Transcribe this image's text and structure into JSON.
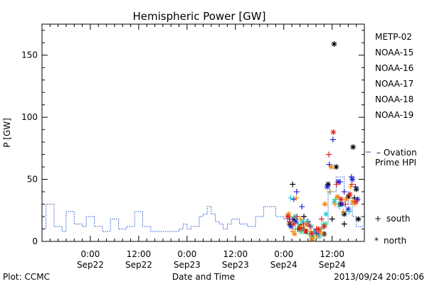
{
  "chart_data": {
    "type": "scatter",
    "title": "Hemispheric Power [GW]",
    "xlabel": "Date and Time",
    "ylabel": "P [GW]",
    "ylim": [
      0,
      175
    ],
    "xlim_hours": [
      -24,
      56
    ],
    "grid": false,
    "legend_position": "right",
    "yticks": [
      0,
      50,
      100,
      150
    ],
    "xticks": [
      {
        "t": -12,
        "time": "0:00",
        "date": "Sep22"
      },
      {
        "t": 0,
        "time": "12:00",
        "date": "Sep22"
      },
      {
        "t": 12,
        "time": "0:00",
        "date": "Sep23"
      },
      {
        "t": 24,
        "time": "12:00",
        "date": "Sep23"
      },
      {
        "t": 36,
        "time": "0:00",
        "date": "Sep24"
      },
      {
        "t": 48,
        "time": "12:00",
        "date": "Sep24"
      }
    ],
    "footer_left": "Plot: CCMC",
    "footer_right": "2013/09/24 20:05:06",
    "legend": [
      {
        "name": "METP-02",
        "color": "#000000"
      },
      {
        "name": "NOAA-15",
        "color": "#2222cc"
      },
      {
        "name": "NOAA-16",
        "color": "#22ccdd"
      },
      {
        "name": "NOAA-17",
        "color": "#33dd77"
      },
      {
        "name": "NOAA-18",
        "color": "#ee8811"
      },
      {
        "name": "NOAA-19",
        "color": "#dd2222"
      }
    ],
    "ovation": {
      "label_line1": "– Ovation",
      "label_line2": "Prime HPI",
      "color": "#2255cc"
    },
    "markers": {
      "south_label": "south",
      "north_label": "north",
      "south_symbol": "+",
      "north_symbol": "*"
    },
    "ovation_series": {
      "t": [
        -24,
        -23,
        -22,
        -21,
        -20,
        -19,
        -18,
        -17,
        -16,
        -15,
        -14,
        -13,
        -12,
        -11,
        -10,
        -9,
        -8,
        -7,
        -6,
        -5,
        -4,
        -3,
        -2,
        -1,
        0,
        1,
        2,
        3,
        4,
        5,
        6,
        7,
        8,
        9,
        10,
        11,
        12,
        13,
        14,
        15,
        16,
        17,
        18,
        19,
        20,
        21,
        22,
        23,
        24,
        25,
        26,
        27,
        28,
        29,
        30,
        31,
        32,
        33,
        34,
        35,
        36,
        37,
        38,
        39,
        40,
        41,
        42,
        43,
        44,
        45,
        46,
        47,
        48,
        49,
        50,
        51,
        52,
        53,
        54,
        55,
        56
      ],
      "p": [
        10,
        30,
        30,
        12,
        12,
        8,
        24,
        24,
        14,
        14,
        12,
        20,
        20,
        12,
        12,
        8,
        8,
        18,
        18,
        10,
        10,
        12,
        12,
        24,
        24,
        12,
        12,
        8,
        8,
        8,
        8,
        8,
        8,
        8,
        10,
        14,
        10,
        12,
        12,
        20,
        22,
        28,
        22,
        16,
        14,
        10,
        14,
        18,
        18,
        14,
        14,
        12,
        12,
        20,
        20,
        28,
        28,
        28,
        20,
        20,
        18,
        16,
        16,
        14,
        12,
        10,
        8,
        6,
        4,
        10,
        14,
        40,
        40,
        52,
        52,
        40,
        30,
        20,
        12,
        12,
        10
      ]
    },
    "satellites": [
      {
        "name": "METP-02",
        "color": "#000000",
        "south": [
          [
            38.2,
            46
          ],
          [
            39.5,
            10
          ],
          [
            41,
            20
          ],
          [
            44,
            8
          ],
          [
            48,
            18
          ],
          [
            51,
            14
          ],
          [
            53.5,
            35
          ]
        ],
        "north": [
          [
            37.5,
            14
          ],
          [
            38.5,
            18
          ],
          [
            40,
            12
          ],
          [
            41.5,
            8
          ],
          [
            43,
            2
          ],
          [
            46,
            6
          ],
          [
            47,
            46
          ],
          [
            48.5,
            159
          ],
          [
            49,
            60
          ],
          [
            50,
            30
          ],
          [
            51,
            22
          ],
          [
            52,
            36
          ],
          [
            53.2,
            76
          ],
          [
            54,
            42
          ],
          [
            54.5,
            18
          ]
        ]
      },
      {
        "name": "NOAA-15",
        "color": "#2222cc",
        "south": [
          [
            37.5,
            18
          ],
          [
            38.5,
            34
          ],
          [
            39.2,
            40
          ],
          [
            40.5,
            28
          ],
          [
            42,
            16
          ],
          [
            43.5,
            8
          ],
          [
            46,
            12
          ],
          [
            47.3,
            62
          ],
          [
            48.2,
            82
          ],
          [
            50,
            48
          ],
          [
            51,
            40
          ],
          [
            52.8,
            52
          ],
          [
            53.8,
            44
          ]
        ],
        "north": [
          [
            37.8,
            12
          ],
          [
            39,
            16
          ],
          [
            40.8,
            10
          ],
          [
            42,
            14
          ],
          [
            44.5,
            6
          ],
          [
            46.8,
            44
          ],
          [
            49.5,
            48
          ],
          [
            50.5,
            30
          ],
          [
            52,
            26
          ],
          [
            53,
            50
          ],
          [
            54.3,
            34
          ]
        ]
      },
      {
        "name": "NOAA-16",
        "color": "#22ccdd",
        "south": [
          [
            37.7,
            35
          ],
          [
            39.6,
            14
          ],
          [
            41.6,
            16
          ],
          [
            43.8,
            8
          ],
          [
            45.8,
            14
          ],
          [
            47.5,
            40
          ],
          [
            49.8,
            28
          ],
          [
            52.2,
            24
          ]
        ],
        "north": [
          [
            38.8,
            20
          ],
          [
            40.6,
            16
          ],
          [
            42.8,
            12
          ],
          [
            44.8,
            4
          ],
          [
            46.5,
            22
          ],
          [
            48.6,
            32
          ]
        ]
      },
      {
        "name": "NOAA-17",
        "color": "#33dd77",
        "south": [
          [
            38.9,
            10
          ],
          [
            42.3,
            6
          ],
          [
            45.3,
            10
          ],
          [
            48.8,
            34
          ]
        ],
        "north": [
          [
            40.3,
            8
          ],
          [
            43.3,
            4
          ],
          [
            46.3,
            14
          ]
        ]
      },
      {
        "name": "NOAA-18",
        "color": "#ee8811",
        "south": [
          [
            37.3,
            20
          ],
          [
            38.2,
            8
          ],
          [
            39.1,
            35
          ],
          [
            40.1,
            18
          ],
          [
            41.2,
            10
          ],
          [
            42.7,
            8
          ],
          [
            44.2,
            4
          ],
          [
            45.6,
            6
          ],
          [
            47.4,
            40
          ],
          [
            48.7,
            30
          ],
          [
            50.8,
            24
          ],
          [
            52.6,
            44
          ],
          [
            53.6,
            30
          ]
        ],
        "north": [
          [
            37.2,
            22
          ],
          [
            38.7,
            6
          ],
          [
            40.2,
            12
          ],
          [
            41.7,
            14
          ],
          [
            43.1,
            2
          ],
          [
            44.9,
            8
          ],
          [
            46.2,
            30
          ],
          [
            47.8,
            60
          ],
          [
            49.3,
            36
          ],
          [
            51.5,
            34
          ],
          [
            53.1,
            32
          ]
        ]
      },
      {
        "name": "NOAA-19",
        "color": "#dd2222",
        "south": [
          [
            37.4,
            16
          ],
          [
            39.3,
            20
          ],
          [
            40.9,
            14
          ],
          [
            42.5,
            12
          ],
          [
            44.1,
            10
          ],
          [
            45.4,
            18
          ],
          [
            47.2,
            70
          ],
          [
            49.1,
            46
          ],
          [
            51.3,
            30
          ],
          [
            52.9,
            46
          ]
        ],
        "north": [
          [
            37,
            20
          ],
          [
            38.4,
            14
          ],
          [
            39.9,
            10
          ],
          [
            41.4,
            8
          ],
          [
            42.9,
            6
          ],
          [
            44.6,
            10
          ],
          [
            46,
            12
          ],
          [
            48.3,
            88
          ],
          [
            50.2,
            34
          ],
          [
            52.4,
            38
          ],
          [
            53.9,
            32
          ]
        ]
      }
    ]
  }
}
